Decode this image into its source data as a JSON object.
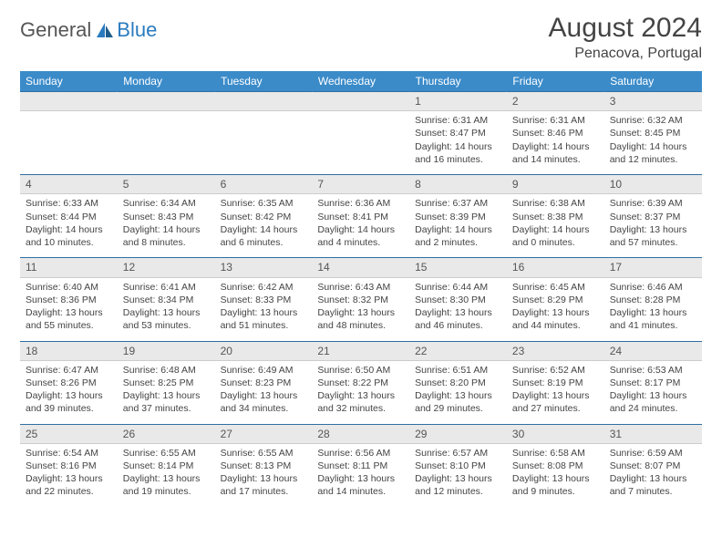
{
  "brand": {
    "part1": "General",
    "part2": "Blue"
  },
  "title": "August 2024",
  "location": "Penacova, Portugal",
  "colors": {
    "header_bg": "#3b8bc9",
    "header_text": "#ffffff",
    "daynum_bg": "#e9e9e9",
    "daynum_border_top": "#2f6fa3",
    "text": "#444444",
    "brand_gray": "#555555",
    "brand_blue": "#2b7bbf",
    "background": "#ffffff"
  },
  "day_headers": [
    "Sunday",
    "Monday",
    "Tuesday",
    "Wednesday",
    "Thursday",
    "Friday",
    "Saturday"
  ],
  "weeks": [
    {
      "nums": [
        "",
        "",
        "",
        "",
        "1",
        "2",
        "3"
      ],
      "cells": [
        "",
        "",
        "",
        "",
        "Sunrise: 6:31 AM\nSunset: 8:47 PM\nDaylight: 14 hours and 16 minutes.",
        "Sunrise: 6:31 AM\nSunset: 8:46 PM\nDaylight: 14 hours and 14 minutes.",
        "Sunrise: 6:32 AM\nSunset: 8:45 PM\nDaylight: 14 hours and 12 minutes."
      ]
    },
    {
      "nums": [
        "4",
        "5",
        "6",
        "7",
        "8",
        "9",
        "10"
      ],
      "cells": [
        "Sunrise: 6:33 AM\nSunset: 8:44 PM\nDaylight: 14 hours and 10 minutes.",
        "Sunrise: 6:34 AM\nSunset: 8:43 PM\nDaylight: 14 hours and 8 minutes.",
        "Sunrise: 6:35 AM\nSunset: 8:42 PM\nDaylight: 14 hours and 6 minutes.",
        "Sunrise: 6:36 AM\nSunset: 8:41 PM\nDaylight: 14 hours and 4 minutes.",
        "Sunrise: 6:37 AM\nSunset: 8:39 PM\nDaylight: 14 hours and 2 minutes.",
        "Sunrise: 6:38 AM\nSunset: 8:38 PM\nDaylight: 14 hours and 0 minutes.",
        "Sunrise: 6:39 AM\nSunset: 8:37 PM\nDaylight: 13 hours and 57 minutes."
      ]
    },
    {
      "nums": [
        "11",
        "12",
        "13",
        "14",
        "15",
        "16",
        "17"
      ],
      "cells": [
        "Sunrise: 6:40 AM\nSunset: 8:36 PM\nDaylight: 13 hours and 55 minutes.",
        "Sunrise: 6:41 AM\nSunset: 8:34 PM\nDaylight: 13 hours and 53 minutes.",
        "Sunrise: 6:42 AM\nSunset: 8:33 PM\nDaylight: 13 hours and 51 minutes.",
        "Sunrise: 6:43 AM\nSunset: 8:32 PM\nDaylight: 13 hours and 48 minutes.",
        "Sunrise: 6:44 AM\nSunset: 8:30 PM\nDaylight: 13 hours and 46 minutes.",
        "Sunrise: 6:45 AM\nSunset: 8:29 PM\nDaylight: 13 hours and 44 minutes.",
        "Sunrise: 6:46 AM\nSunset: 8:28 PM\nDaylight: 13 hours and 41 minutes."
      ]
    },
    {
      "nums": [
        "18",
        "19",
        "20",
        "21",
        "22",
        "23",
        "24"
      ],
      "cells": [
        "Sunrise: 6:47 AM\nSunset: 8:26 PM\nDaylight: 13 hours and 39 minutes.",
        "Sunrise: 6:48 AM\nSunset: 8:25 PM\nDaylight: 13 hours and 37 minutes.",
        "Sunrise: 6:49 AM\nSunset: 8:23 PM\nDaylight: 13 hours and 34 minutes.",
        "Sunrise: 6:50 AM\nSunset: 8:22 PM\nDaylight: 13 hours and 32 minutes.",
        "Sunrise: 6:51 AM\nSunset: 8:20 PM\nDaylight: 13 hours and 29 minutes.",
        "Sunrise: 6:52 AM\nSunset: 8:19 PM\nDaylight: 13 hours and 27 minutes.",
        "Sunrise: 6:53 AM\nSunset: 8:17 PM\nDaylight: 13 hours and 24 minutes."
      ]
    },
    {
      "nums": [
        "25",
        "26",
        "27",
        "28",
        "29",
        "30",
        "31"
      ],
      "cells": [
        "Sunrise: 6:54 AM\nSunset: 8:16 PM\nDaylight: 13 hours and 22 minutes.",
        "Sunrise: 6:55 AM\nSunset: 8:14 PM\nDaylight: 13 hours and 19 minutes.",
        "Sunrise: 6:55 AM\nSunset: 8:13 PM\nDaylight: 13 hours and 17 minutes.",
        "Sunrise: 6:56 AM\nSunset: 8:11 PM\nDaylight: 13 hours and 14 minutes.",
        "Sunrise: 6:57 AM\nSunset: 8:10 PM\nDaylight: 13 hours and 12 minutes.",
        "Sunrise: 6:58 AM\nSunset: 8:08 PM\nDaylight: 13 hours and 9 minutes.",
        "Sunrise: 6:59 AM\nSunset: 8:07 PM\nDaylight: 13 hours and 7 minutes."
      ]
    }
  ]
}
